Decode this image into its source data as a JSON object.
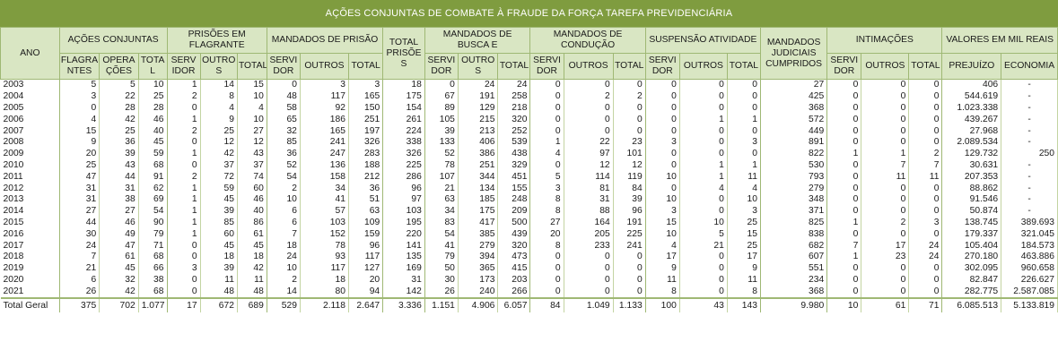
{
  "title": "AÇÕES CONJUNTAS DE COMBATE À FRAUDE DA FORÇA TAREFA PREVIDENCIÁRIA",
  "headers": {
    "ano": "ANO",
    "acoes": "AÇÕES CONJUNTAS",
    "acoes_flagrantes": "FLAGRA NTES",
    "acoes_operacoes": "OPERA ÇÕES",
    "acoes_total": "TOTA L",
    "prisoes": "PRISÕES EM FLAGRANTE",
    "prisoes_servidor": "SERV IDOR",
    "prisoes_outros": "OUTRO S",
    "prisoes_total": "TOTAL",
    "mandados_prisao": "MANDADOS DE PRISÃO",
    "mp_servidor": "SERVI DOR",
    "mp_outros": "OUTROS",
    "mp_total": "TOTAL",
    "total_prisoes": "TOTAL PRISÕE S",
    "busca": "MANDADOS DE BUSCA E",
    "busca_servidor": "SERVI DOR",
    "busca_outros": "OUTRO S",
    "busca_total": "TOTAL",
    "conducao": "MANDADOS DE CONDUÇÃO",
    "cond_servidor": "SERVI DOR",
    "cond_outros": "OUTROS",
    "cond_total": "TOTAL",
    "suspensao": "SUSPENSÃO ATIVIDADE",
    "susp_servidor": "SERVI DOR",
    "susp_outros": "OUTROS",
    "susp_total": "TOTAL",
    "judiciais": "MANDADOS JUDICIAIS CUMPRIDOS",
    "intimacoes": "INTIMAÇÕES",
    "int_servidor": "SERVI DOR",
    "int_outros": "OUTROS",
    "int_total": "TOTAL",
    "valores": "VALORES EM MIL REAIS",
    "prejuizo": "PREJUÍZO",
    "economia": "ECONOMIA"
  },
  "rows": [
    [
      "2003",
      "5",
      "5",
      "10",
      "1",
      "14",
      "15",
      "0",
      "3",
      "3",
      "18",
      "0",
      "24",
      "24",
      "0",
      "0",
      "0",
      "0",
      "0",
      "0",
      "27",
      "0",
      "0",
      "0",
      "406",
      "-"
    ],
    [
      "2004",
      "3",
      "22",
      "25",
      "2",
      "8",
      "10",
      "48",
      "117",
      "165",
      "175",
      "67",
      "191",
      "258",
      "0",
      "2",
      "2",
      "0",
      "0",
      "0",
      "425",
      "0",
      "0",
      "0",
      "544.619",
      "-"
    ],
    [
      "2005",
      "0",
      "28",
      "28",
      "0",
      "4",
      "4",
      "58",
      "92",
      "150",
      "154",
      "89",
      "129",
      "218",
      "0",
      "0",
      "0",
      "0",
      "0",
      "0",
      "368",
      "0",
      "0",
      "0",
      "1.023.338",
      "-"
    ],
    [
      "2006",
      "4",
      "42",
      "46",
      "1",
      "9",
      "10",
      "65",
      "186",
      "251",
      "261",
      "105",
      "215",
      "320",
      "0",
      "0",
      "0",
      "0",
      "1",
      "1",
      "572",
      "0",
      "0",
      "0",
      "439.267",
      "-"
    ],
    [
      "2007",
      "15",
      "25",
      "40",
      "2",
      "25",
      "27",
      "32",
      "165",
      "197",
      "224",
      "39",
      "213",
      "252",
      "0",
      "0",
      "0",
      "0",
      "0",
      "0",
      "449",
      "0",
      "0",
      "0",
      "27.968",
      "-"
    ],
    [
      "2008",
      "9",
      "36",
      "45",
      "0",
      "12",
      "12",
      "85",
      "241",
      "326",
      "338",
      "133",
      "406",
      "539",
      "1",
      "22",
      "23",
      "3",
      "0",
      "3",
      "891",
      "0",
      "0",
      "0",
      "2.089.534",
      "-"
    ],
    [
      "2009",
      "20",
      "39",
      "59",
      "1",
      "42",
      "43",
      "36",
      "247",
      "283",
      "326",
      "52",
      "386",
      "438",
      "4",
      "97",
      "101",
      "0",
      "0",
      "0",
      "822",
      "1",
      "1",
      "2",
      "129.732",
      "250"
    ],
    [
      "2010",
      "25",
      "43",
      "68",
      "0",
      "37",
      "37",
      "52",
      "136",
      "188",
      "225",
      "78",
      "251",
      "329",
      "0",
      "12",
      "12",
      "0",
      "1",
      "1",
      "530",
      "0",
      "7",
      "7",
      "30.631",
      "-"
    ],
    [
      "2011",
      "47",
      "44",
      "91",
      "2",
      "72",
      "74",
      "54",
      "158",
      "212",
      "286",
      "107",
      "344",
      "451",
      "5",
      "114",
      "119",
      "10",
      "1",
      "11",
      "793",
      "0",
      "11",
      "11",
      "207.353",
      "-"
    ],
    [
      "2012",
      "31",
      "31",
      "62",
      "1",
      "59",
      "60",
      "2",
      "34",
      "36",
      "96",
      "21",
      "134",
      "155",
      "3",
      "81",
      "84",
      "0",
      "4",
      "4",
      "279",
      "0",
      "0",
      "0",
      "88.862",
      "-"
    ],
    [
      "2013",
      "31",
      "38",
      "69",
      "1",
      "45",
      "46",
      "10",
      "41",
      "51",
      "97",
      "63",
      "185",
      "248",
      "8",
      "31",
      "39",
      "10",
      "0",
      "10",
      "348",
      "0",
      "0",
      "0",
      "91.546",
      "-"
    ],
    [
      "2014",
      "27",
      "27",
      "54",
      "1",
      "39",
      "40",
      "6",
      "57",
      "63",
      "103",
      "34",
      "175",
      "209",
      "8",
      "88",
      "96",
      "3",
      "0",
      "3",
      "371",
      "0",
      "0",
      "0",
      "50.874",
      "-"
    ],
    [
      "2015",
      "44",
      "46",
      "90",
      "1",
      "85",
      "86",
      "6",
      "103",
      "109",
      "195",
      "83",
      "417",
      "500",
      "27",
      "164",
      "191",
      "15",
      "10",
      "25",
      "825",
      "1",
      "2",
      "3",
      "138.745",
      "389.693"
    ],
    [
      "2016",
      "30",
      "49",
      "79",
      "1",
      "60",
      "61",
      "7",
      "152",
      "159",
      "220",
      "54",
      "385",
      "439",
      "20",
      "205",
      "225",
      "10",
      "5",
      "15",
      "838",
      "0",
      "0",
      "0",
      "179.337",
      "321.045"
    ],
    [
      "2017",
      "24",
      "47",
      "71",
      "0",
      "45",
      "45",
      "18",
      "78",
      "96",
      "141",
      "41",
      "279",
      "320",
      "8",
      "233",
      "241",
      "4",
      "21",
      "25",
      "682",
      "7",
      "17",
      "24",
      "105.404",
      "184.573"
    ],
    [
      "2018",
      "7",
      "61",
      "68",
      "0",
      "18",
      "18",
      "24",
      "93",
      "117",
      "135",
      "79",
      "394",
      "473",
      "0",
      "0",
      "0",
      "17",
      "0",
      "17",
      "607",
      "1",
      "23",
      "24",
      "270.180",
      "463.886"
    ],
    [
      "2019",
      "21",
      "45",
      "66",
      "3",
      "39",
      "42",
      "10",
      "117",
      "127",
      "169",
      "50",
      "365",
      "415",
      "0",
      "0",
      "0",
      "9",
      "0",
      "9",
      "551",
      "0",
      "0",
      "0",
      "302.095",
      "960.658"
    ],
    [
      "2020",
      "6",
      "32",
      "38",
      "0",
      "11",
      "11",
      "2",
      "18",
      "20",
      "31",
      "30",
      "173",
      "203",
      "0",
      "0",
      "0",
      "11",
      "0",
      "11",
      "234",
      "0",
      "0",
      "0",
      "82.847",
      "226.627"
    ],
    [
      "2021",
      "26",
      "42",
      "68",
      "0",
      "48",
      "48",
      "14",
      "80",
      "94",
      "142",
      "26",
      "240",
      "266",
      "0",
      "0",
      "0",
      "8",
      "0",
      "8",
      "368",
      "0",
      "0",
      "0",
      "282.775",
      "2.587.085"
    ]
  ],
  "total": [
    "Total Geral",
    "375",
    "702",
    "1.077",
    "17",
    "672",
    "689",
    "529",
    "2.118",
    "2.647",
    "3.336",
    "1.151",
    "4.906",
    "6.057",
    "84",
    "1.049",
    "1.133",
    "100",
    "43",
    "143",
    "9.980",
    "10",
    "61",
    "71",
    "6.085.513",
    "5.133.819"
  ]
}
